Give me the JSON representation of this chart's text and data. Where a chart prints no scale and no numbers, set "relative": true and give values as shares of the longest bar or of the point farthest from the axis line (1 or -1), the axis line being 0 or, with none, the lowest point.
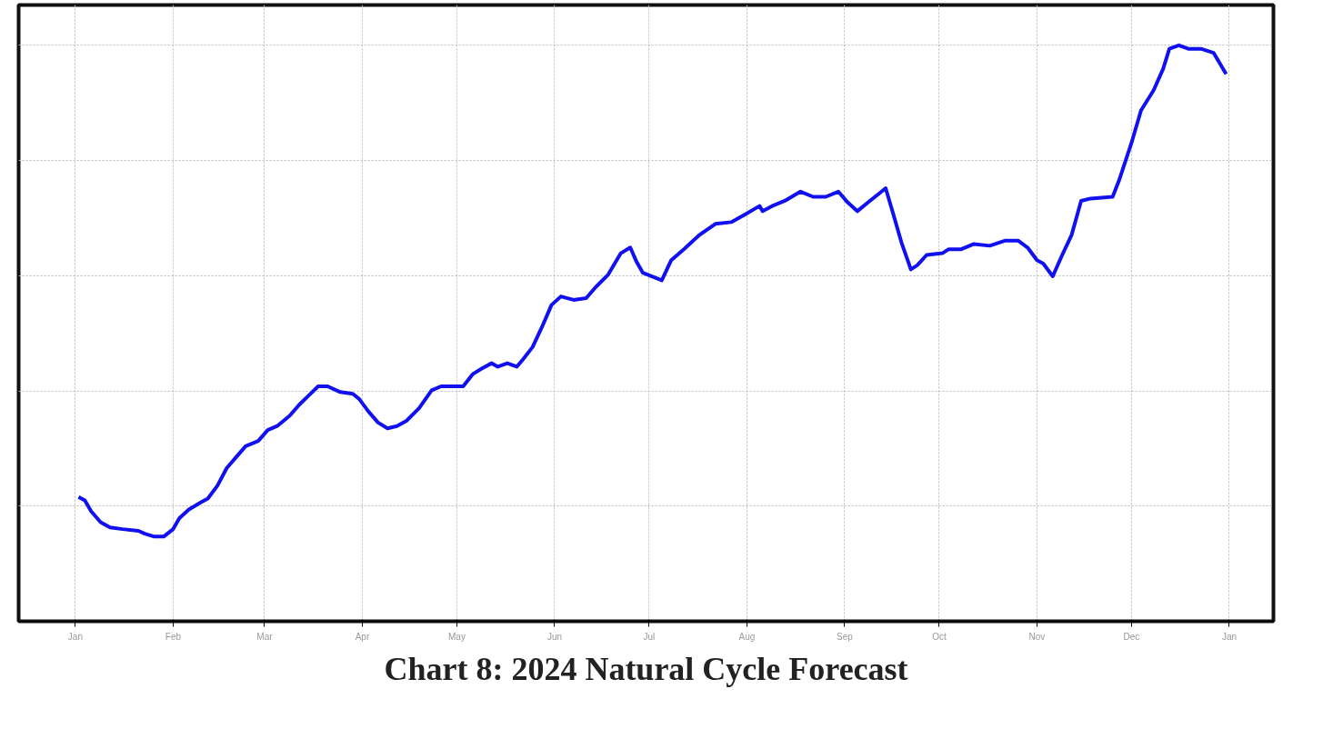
{
  "chart_data": {
    "type": "line",
    "title": "Chart 8: 2024 Natural Cycle Forecast",
    "relative": true,
    "grid": true,
    "line_style": "solid",
    "xlim": [
      "2023-12-14",
      "2025-01-15"
    ],
    "xticks": [
      {
        "value": "2024-01-01",
        "label": "Jan"
      },
      {
        "value": "2024-02-01",
        "label": "Feb"
      },
      {
        "value": "2024-03-01",
        "label": "Mar"
      },
      {
        "value": "2024-04-01",
        "label": "Apr"
      },
      {
        "value": "2024-05-01",
        "label": "May"
      },
      {
        "value": "2024-06-01",
        "label": "Jun"
      },
      {
        "value": "2024-07-01",
        "label": "Jul"
      },
      {
        "value": "2024-08-01",
        "label": "Aug"
      },
      {
        "value": "2024-09-01",
        "label": "Sep"
      },
      {
        "value": "2024-10-01",
        "label": "Oct"
      },
      {
        "value": "2024-11-01",
        "label": "Nov"
      },
      {
        "value": "2024-12-01",
        "label": "Dec"
      },
      {
        "value": "2025-01-01",
        "label": "Jan"
      }
    ],
    "series": [
      {
        "color": "#1010f0",
        "x": [
          "2024-01-02",
          "2024-01-04",
          "2024-01-06",
          "2024-01-09",
          "2024-01-12",
          "2024-01-16",
          "2024-01-21",
          "2024-01-23",
          "2024-01-26",
          "2024-01-29",
          "2024-02-01",
          "2024-02-03",
          "2024-02-06",
          "2024-02-10",
          "2024-02-12",
          "2024-02-15",
          "2024-02-18",
          "2024-02-21",
          "2024-02-24",
          "2024-02-28",
          "2024-03-02",
          "2024-03-05",
          "2024-03-09",
          "2024-03-12",
          "2024-03-15",
          "2024-03-18",
          "2024-03-21",
          "2024-03-25",
          "2024-03-29",
          "2024-03-31",
          "2024-04-03",
          "2024-04-06",
          "2024-04-09",
          "2024-04-12",
          "2024-04-15",
          "2024-04-19",
          "2024-04-23",
          "2024-04-26",
          "2024-05-03",
          "2024-05-06",
          "2024-05-09",
          "2024-05-12",
          "2024-05-14",
          "2024-05-17",
          "2024-05-20",
          "2024-05-22",
          "2024-05-25",
          "2024-05-28",
          "2024-05-31",
          "2024-06-03",
          "2024-06-07",
          "2024-06-11",
          "2024-06-14",
          "2024-06-18",
          "2024-06-22",
          "2024-06-25",
          "2024-06-27",
          "2024-06-29",
          "2024-07-05",
          "2024-07-08",
          "2024-07-12",
          "2024-07-17",
          "2024-07-22",
          "2024-07-27",
          "2024-07-31",
          "2024-08-05",
          "2024-08-06",
          "2024-08-09",
          "2024-08-13",
          "2024-08-18",
          "2024-08-22",
          "2024-08-26",
          "2024-08-30",
          "2024-09-02",
          "2024-09-05",
          "2024-09-09",
          "2024-09-12",
          "2024-09-14",
          "2024-09-16",
          "2024-09-19",
          "2024-09-22",
          "2024-09-24",
          "2024-09-27",
          "2024-10-02",
          "2024-10-04",
          "2024-10-08",
          "2024-10-12",
          "2024-10-17",
          "2024-10-22",
          "2024-10-26",
          "2024-10-29",
          "2024-11-01",
          "2024-11-03",
          "2024-11-06",
          "2024-11-09",
          "2024-11-12",
          "2024-11-15",
          "2024-11-18",
          "2024-11-25",
          "2024-11-27",
          "2024-12-01",
          "2024-12-04",
          "2024-12-08",
          "2024-12-11",
          "2024-12-13",
          "2024-12-16",
          "2024-12-19",
          "2024-12-23",
          "2024-12-27",
          "2024-12-31"
        ],
        "values": [
          0.216,
          0.21,
          0.191,
          0.172,
          0.163,
          0.16,
          0.157,
          0.152,
          0.147,
          0.147,
          0.16,
          0.179,
          0.194,
          0.207,
          0.213,
          0.235,
          0.266,
          0.285,
          0.304,
          0.313,
          0.332,
          0.339,
          0.357,
          0.376,
          0.392,
          0.408,
          0.408,
          0.398,
          0.395,
          0.386,
          0.364,
          0.345,
          0.335,
          0.339,
          0.348,
          0.37,
          0.401,
          0.408,
          0.408,
          0.429,
          0.439,
          0.448,
          0.442,
          0.448,
          0.442,
          0.455,
          0.476,
          0.511,
          0.549,
          0.564,
          0.558,
          0.561,
          0.58,
          0.602,
          0.639,
          0.649,
          0.624,
          0.605,
          0.592,
          0.627,
          0.646,
          0.671,
          0.69,
          0.693,
          0.705,
          0.721,
          0.712,
          0.721,
          0.73,
          0.746,
          0.737,
          0.737,
          0.746,
          0.727,
          0.712,
          0.73,
          0.743,
          0.752,
          0.715,
          0.658,
          0.611,
          0.618,
          0.636,
          0.639,
          0.646,
          0.646,
          0.655,
          0.652,
          0.661,
          0.661,
          0.649,
          0.627,
          0.621,
          0.599,
          0.636,
          0.671,
          0.73,
          0.734,
          0.737,
          0.765,
          0.831,
          0.887,
          0.922,
          0.959,
          0.994,
          1,
          0.994,
          0.994,
          0.987,
          0.95
        ]
      }
    ]
  }
}
